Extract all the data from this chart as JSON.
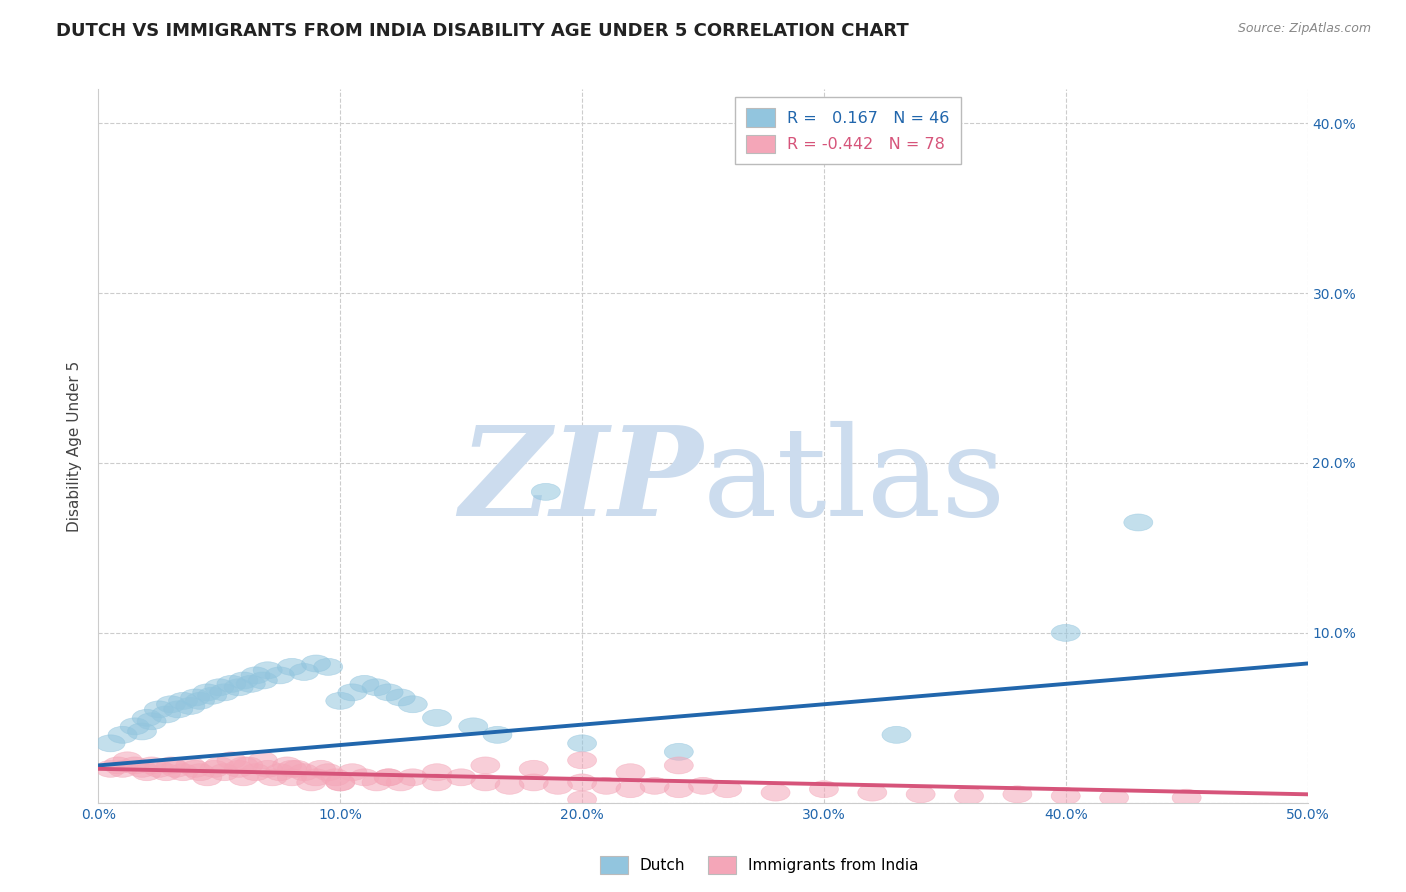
{
  "title": "DUTCH VS IMMIGRANTS FROM INDIA DISABILITY AGE UNDER 5 CORRELATION CHART",
  "source": "Source: ZipAtlas.com",
  "ylabel": "Disability Age Under 5",
  "xlabel": "",
  "xlim": [
    0.0,
    0.5
  ],
  "ylim": [
    0.0,
    0.42
  ],
  "xtick_vals": [
    0.0,
    0.1,
    0.2,
    0.3,
    0.4,
    0.5
  ],
  "ytick_vals": [
    0.0,
    0.1,
    0.2,
    0.3,
    0.4
  ],
  "background_color": "#ffffff",
  "blue_color": "#92c5de",
  "blue_line_color": "#2166ac",
  "pink_color": "#f4a6b8",
  "pink_line_color": "#d6547a",
  "legend_R_blue": "0.167",
  "legend_N_blue": "46",
  "legend_R_pink": "-0.442",
  "legend_N_pink": "78",
  "blue_scatter_x": [
    0.005,
    0.01,
    0.015,
    0.018,
    0.02,
    0.022,
    0.025,
    0.028,
    0.03,
    0.033,
    0.035,
    0.038,
    0.04,
    0.042,
    0.045,
    0.047,
    0.05,
    0.052,
    0.055,
    0.058,
    0.06,
    0.063,
    0.065,
    0.068,
    0.07,
    0.075,
    0.08,
    0.085,
    0.09,
    0.095,
    0.1,
    0.105,
    0.11,
    0.115,
    0.12,
    0.125,
    0.13,
    0.14,
    0.155,
    0.165,
    0.24,
    0.33,
    0.4,
    0.43,
    0.185,
    0.2
  ],
  "blue_scatter_y": [
    0.035,
    0.04,
    0.045,
    0.042,
    0.05,
    0.048,
    0.055,
    0.052,
    0.058,
    0.055,
    0.06,
    0.057,
    0.062,
    0.06,
    0.065,
    0.063,
    0.068,
    0.065,
    0.07,
    0.068,
    0.072,
    0.07,
    0.075,
    0.072,
    0.078,
    0.075,
    0.08,
    0.077,
    0.082,
    0.08,
    0.06,
    0.065,
    0.07,
    0.068,
    0.065,
    0.062,
    0.058,
    0.05,
    0.045,
    0.04,
    0.03,
    0.04,
    0.1,
    0.165,
    0.183,
    0.035
  ],
  "pink_scatter_x": [
    0.005,
    0.008,
    0.01,
    0.012,
    0.015,
    0.018,
    0.02,
    0.022,
    0.025,
    0.028,
    0.03,
    0.032,
    0.035,
    0.038,
    0.04,
    0.042,
    0.045,
    0.048,
    0.05,
    0.052,
    0.055,
    0.058,
    0.06,
    0.062,
    0.065,
    0.068,
    0.07,
    0.072,
    0.075,
    0.078,
    0.08,
    0.082,
    0.085,
    0.088,
    0.09,
    0.092,
    0.095,
    0.098,
    0.1,
    0.105,
    0.11,
    0.115,
    0.12,
    0.125,
    0.13,
    0.14,
    0.15,
    0.16,
    0.17,
    0.18,
    0.19,
    0.2,
    0.21,
    0.22,
    0.23,
    0.24,
    0.25,
    0.26,
    0.28,
    0.3,
    0.32,
    0.34,
    0.36,
    0.38,
    0.4,
    0.42,
    0.45,
    0.06,
    0.08,
    0.1,
    0.12,
    0.14,
    0.16,
    0.18,
    0.2,
    0.22,
    0.24,
    0.2
  ],
  "pink_scatter_y": [
    0.02,
    0.022,
    0.02,
    0.025,
    0.022,
    0.02,
    0.018,
    0.022,
    0.02,
    0.018,
    0.022,
    0.02,
    0.018,
    0.022,
    0.02,
    0.018,
    0.015,
    0.02,
    0.022,
    0.018,
    0.025,
    0.02,
    0.015,
    0.022,
    0.018,
    0.025,
    0.02,
    0.015,
    0.018,
    0.022,
    0.015,
    0.02,
    0.018,
    0.012,
    0.015,
    0.02,
    0.018,
    0.015,
    0.012,
    0.018,
    0.015,
    0.012,
    0.015,
    0.012,
    0.015,
    0.012,
    0.015,
    0.012,
    0.01,
    0.012,
    0.01,
    0.012,
    0.01,
    0.008,
    0.01,
    0.008,
    0.01,
    0.008,
    0.006,
    0.008,
    0.006,
    0.005,
    0.004,
    0.005,
    0.004,
    0.003,
    0.003,
    0.022,
    0.02,
    0.012,
    0.015,
    0.018,
    0.022,
    0.02,
    0.025,
    0.018,
    0.022,
    0.002
  ],
  "blue_trend_y_start": 0.022,
  "blue_trend_y_end": 0.082,
  "pink_trend_y_start": 0.02,
  "pink_trend_y_end": 0.005,
  "grid_color": "#cccccc",
  "title_fontsize": 13,
  "axis_label_fontsize": 11,
  "tick_fontsize": 10,
  "watermark_color": "#ccdcee",
  "legend_label_blue": "Dutch",
  "legend_label_pink": "Immigrants from India"
}
